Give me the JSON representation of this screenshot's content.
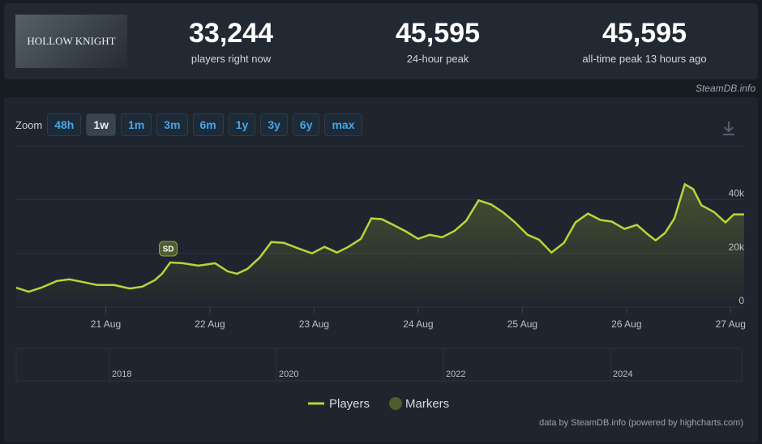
{
  "header": {
    "game_title": "HOLLOW KNIGHT",
    "stats": [
      {
        "value": "33,244",
        "label": "players right now"
      },
      {
        "value": "45,595",
        "label": "24-hour peak"
      },
      {
        "value": "45,595",
        "label": "all-time peak 13 hours ago"
      }
    ],
    "site": "SteamDB.info"
  },
  "zoom": {
    "label": "Zoom",
    "buttons": [
      "48h",
      "1w",
      "1m",
      "3m",
      "6m",
      "1y",
      "3y",
      "6y",
      "max"
    ],
    "active": 1
  },
  "chart_data": {
    "type": "line",
    "x": [
      20.14,
      20.26,
      20.38,
      20.53,
      20.65,
      20.77,
      20.92,
      21.08,
      21.23,
      21.35,
      21.47,
      21.54,
      21.62,
      21.74,
      21.89,
      22.05,
      22.17,
      22.26,
      22.36,
      22.48,
      22.59,
      22.71,
      22.83,
      22.98,
      23.1,
      23.22,
      23.33,
      23.45,
      23.55,
      23.65,
      23.76,
      23.88,
      24.0,
      24.11,
      24.23,
      24.35,
      24.46,
      24.58,
      24.7,
      24.81,
      24.93,
      25.05,
      25.16,
      25.28,
      25.4,
      25.51,
      25.63,
      25.75,
      25.86,
      25.98,
      26.1,
      26.21,
      26.28,
      26.37,
      26.46,
      26.56,
      26.64,
      26.72,
      26.84,
      26.95,
      27.03,
      27.13
    ],
    "series": [
      {
        "name": "Players",
        "color": "#b7d63a",
        "values": [
          7200,
          5700,
          7200,
          9700,
          10300,
          9400,
          8200,
          8200,
          6900,
          7600,
          10000,
          12400,
          16600,
          16300,
          15400,
          16300,
          13300,
          12400,
          14200,
          18500,
          24200,
          23900,
          22100,
          20000,
          22400,
          20300,
          22400,
          25400,
          33000,
          32700,
          30600,
          28200,
          25400,
          26900,
          26000,
          28400,
          32100,
          39700,
          38200,
          35400,
          31500,
          26900,
          25100,
          20300,
          23900,
          31500,
          34800,
          32400,
          31800,
          29100,
          30600,
          26900,
          24800,
          27600,
          33000,
          45700,
          43900,
          37900,
          35400,
          31500,
          34500,
          34500
        ]
      }
    ],
    "markers": {
      "name": "Markers",
      "color": "#4c5e2c",
      "items": [
        {
          "x": 21.6,
          "label": "SD"
        }
      ]
    },
    "xlim": [
      20.14,
      27.13
    ],
    "xticks": [
      {
        "value": 21,
        "label": "21 Aug"
      },
      {
        "value": 22,
        "label": "22 Aug"
      },
      {
        "value": 23,
        "label": "23 Aug"
      },
      {
        "value": 24,
        "label": "24 Aug"
      },
      {
        "value": 25,
        "label": "25 Aug"
      },
      {
        "value": 26,
        "label": "26 Aug"
      },
      {
        "value": 27,
        "label": "27 Aug"
      }
    ],
    "ylim": [
      0,
      60000
    ],
    "yticks": [
      0,
      {
        "value": 20000,
        "label": "20k"
      },
      {
        "value": 40000,
        "label": "40k"
      }
    ],
    "grid": true,
    "navigator_labels": [
      "2018",
      "2020",
      "2022",
      "2024"
    ],
    "credit": "data by SteamDB.info (powered by highcharts.com)"
  }
}
